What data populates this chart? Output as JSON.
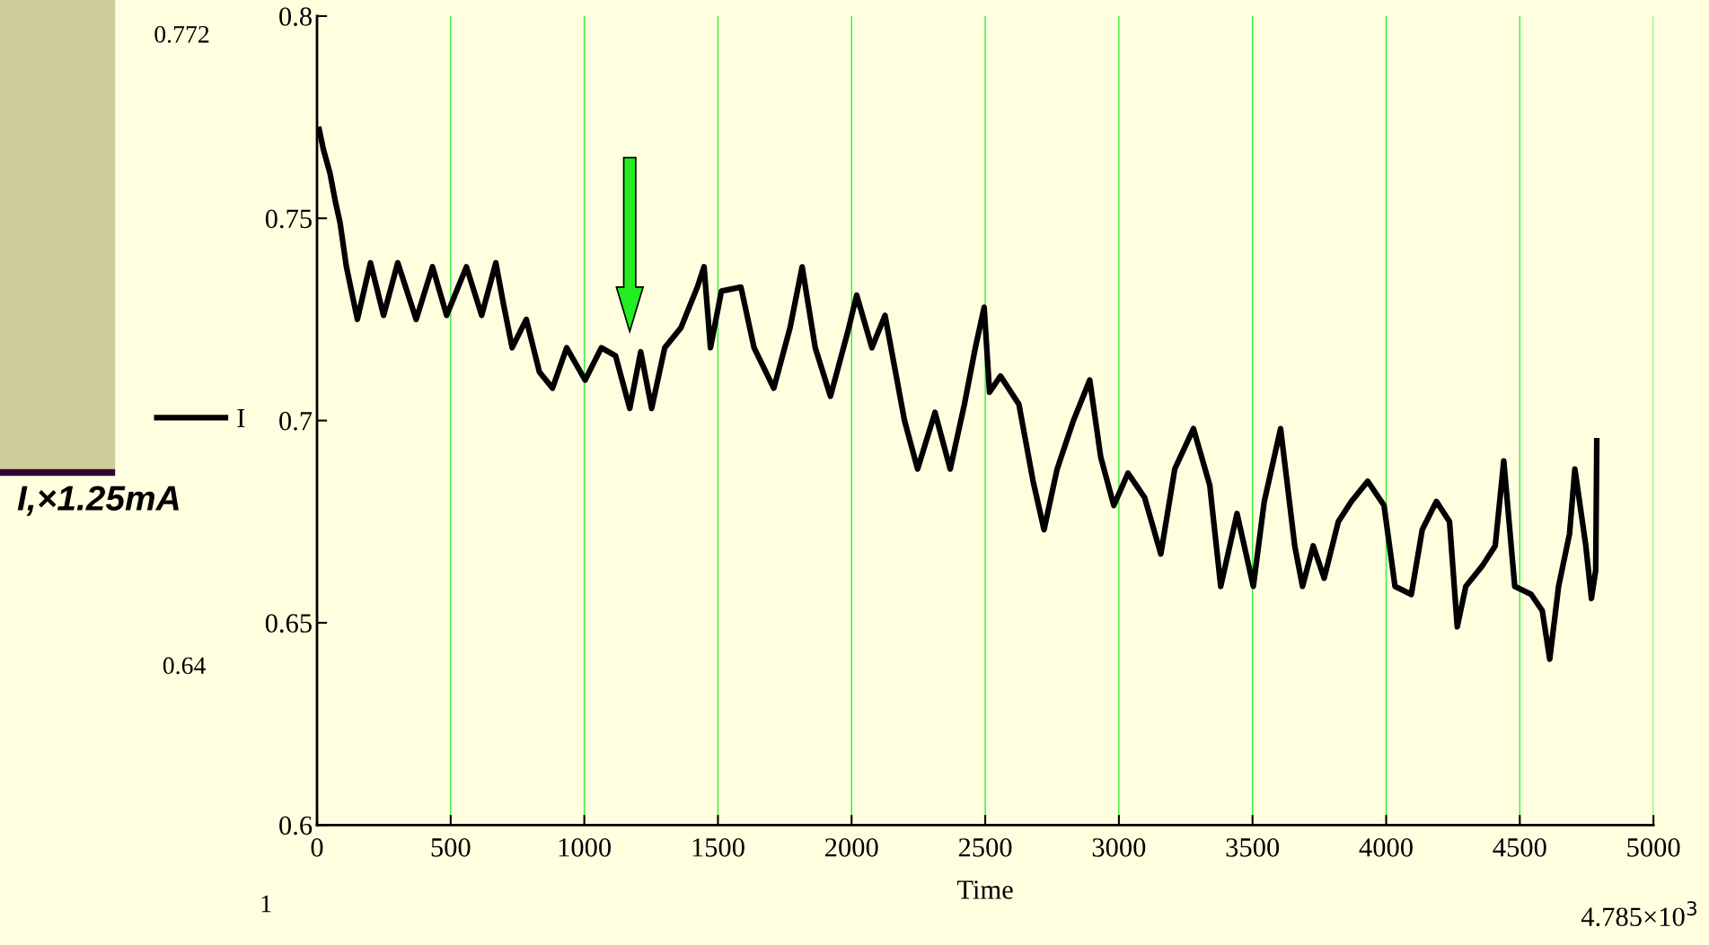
{
  "chart_data": {
    "type": "line",
    "xlabel": "Time",
    "xlim": [
      0,
      5000
    ],
    "xticks": [
      0,
      500,
      1000,
      1500,
      2000,
      2500,
      3000,
      3500,
      4000,
      4500,
      5000
    ],
    "ylim": [
      0.6,
      0.8
    ],
    "yticks": [
      0.6,
      0.65,
      0.7,
      0.75,
      0.8
    ],
    "grid": "x",
    "legend": "left",
    "marker": "none",
    "line_style": "solid",
    "annotations": [
      "0.772",
      "0.64",
      "1",
      "4.785×10$^{3}$",
      "I,×1.25mA"
    ],
    "x": [
      8,
      24,
      49,
      69,
      86,
      110,
      151,
      200,
      249,
      302,
      371,
      432,
      485,
      559,
      616,
      669,
      697,
      730,
      783,
      832,
      881,
      934,
      1003,
      1064,
      1117,
      1170,
      1211,
      1252,
      1301,
      1362,
      1423,
      1448,
      1472,
      1513,
      1586,
      1635,
      1709,
      1770,
      1815,
      1864,
      1921,
      1986,
      2019,
      2076,
      2125,
      2198,
      2247,
      2312,
      2369,
      2422,
      2463,
      2496,
      2516,
      2557,
      2626,
      2679,
      2720,
      2769,
      2830,
      2891,
      2932,
      2981,
      3034,
      3096,
      3157,
      3209,
      3279,
      3340,
      3381,
      3442,
      3503,
      3544,
      3605,
      3658,
      3687,
      3727,
      3768,
      3821,
      3870,
      3931,
      3992,
      4033,
      4094,
      4135,
      4188,
      4237,
      4266,
      4298,
      4359,
      4408,
      4440,
      4481,
      4543,
      4584,
      4612,
      4645,
      4686,
      4706,
      4747,
      4768,
      4784,
      4788
    ],
    "series": [
      {
        "name": "I",
        "color": "#000000",
        "values": [
          0.772,
          0.767,
          0.761,
          0.754,
          0.749,
          0.738,
          0.725,
          0.739,
          0.726,
          0.739,
          0.725,
          0.738,
          0.726,
          0.738,
          0.726,
          0.739,
          0.729,
          0.718,
          0.725,
          0.712,
          0.708,
          0.718,
          0.71,
          0.718,
          0.716,
          0.703,
          0.717,
          0.703,
          0.718,
          0.723,
          0.733,
          0.738,
          0.718,
          0.732,
          0.733,
          0.718,
          0.708,
          0.723,
          0.738,
          0.718,
          0.706,
          0.722,
          0.731,
          0.718,
          0.726,
          0.7,
          0.688,
          0.702,
          0.688,
          0.704,
          0.718,
          0.728,
          0.707,
          0.711,
          0.704,
          0.685,
          0.673,
          0.688,
          0.7,
          0.71,
          0.691,
          0.679,
          0.687,
          0.681,
          0.667,
          0.688,
          0.698,
          0.684,
          0.659,
          0.677,
          0.659,
          0.68,
          0.698,
          0.669,
          0.659,
          0.669,
          0.661,
          0.675,
          0.68,
          0.685,
          0.679,
          0.659,
          0.657,
          0.673,
          0.68,
          0.675,
          0.649,
          0.659,
          0.664,
          0.669,
          0.69,
          0.659,
          0.657,
          0.653,
          0.641,
          0.659,
          0.672,
          0.688,
          0.669,
          0.656,
          0.663,
          0.695
        ]
      }
    ]
  }
}
